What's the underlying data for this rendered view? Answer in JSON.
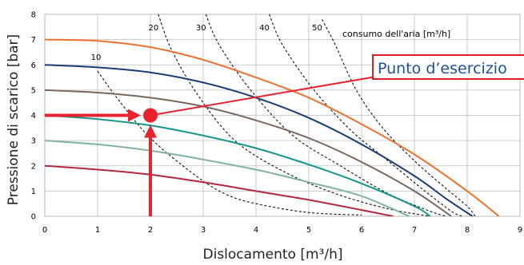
{
  "chart_data": {
    "type": "line",
    "title": "",
    "xlabel": "Dislocamento [m³/h]",
    "ylabel": "Pressione di scarico [bar]",
    "xlim": [
      0,
      9
    ],
    "ylim": [
      0,
      8
    ],
    "x_ticks": [
      "0",
      "1",
      "2",
      "3",
      "4",
      "5",
      "6",
      "7",
      "8",
      "9"
    ],
    "y_ticks": [
      "0",
      "1",
      "2",
      "3",
      "4",
      "5",
      "6",
      "7",
      "8"
    ],
    "grid": true,
    "pump_curves": [
      {
        "color": "#b5273a",
        "points": [
          [
            0,
            2.0
          ],
          [
            1,
            1.85
          ],
          [
            2,
            1.65
          ],
          [
            3,
            1.35
          ],
          [
            4,
            1.0
          ],
          [
            5,
            0.65
          ],
          [
            6,
            0.25
          ],
          [
            6.6,
            0
          ]
        ]
      },
      {
        "color": "#7fb3a3",
        "points": [
          [
            0,
            3.0
          ],
          [
            1,
            2.85
          ],
          [
            2,
            2.6
          ],
          [
            3,
            2.25
          ],
          [
            4,
            1.85
          ],
          [
            5,
            1.35
          ],
          [
            6,
            0.8
          ],
          [
            6.9,
            0
          ]
        ]
      },
      {
        "color": "#14968a",
        "points": [
          [
            0,
            4.0
          ],
          [
            1,
            3.85
          ],
          [
            2,
            3.6
          ],
          [
            3,
            3.2
          ],
          [
            4,
            2.7
          ],
          [
            5,
            2.05
          ],
          [
            6,
            1.3
          ],
          [
            7,
            0.4
          ],
          [
            7.3,
            0
          ]
        ]
      },
      {
        "color": "#7b675a",
        "points": [
          [
            0,
            5.0
          ],
          [
            1,
            4.9
          ],
          [
            2,
            4.7
          ],
          [
            3,
            4.35
          ],
          [
            4,
            3.8
          ],
          [
            5,
            3.1
          ],
          [
            6,
            2.15
          ],
          [
            7,
            1.0
          ],
          [
            7.7,
            0
          ]
        ]
      },
      {
        "color": "#1a3d7a",
        "points": [
          [
            0,
            6.0
          ],
          [
            1,
            5.9
          ],
          [
            2,
            5.7
          ],
          [
            3,
            5.3
          ],
          [
            4,
            4.7
          ],
          [
            5,
            3.9
          ],
          [
            6,
            2.85
          ],
          [
            7,
            1.6
          ],
          [
            7.6,
            0.7
          ],
          [
            8.1,
            0
          ]
        ]
      },
      {
        "color": "#f07030",
        "points": [
          [
            0,
            7.0
          ],
          [
            1,
            6.95
          ],
          [
            2,
            6.7
          ],
          [
            3,
            6.2
          ],
          [
            4,
            5.5
          ],
          [
            5,
            4.7
          ],
          [
            6,
            3.65
          ],
          [
            7,
            2.45
          ],
          [
            8,
            1.0
          ],
          [
            8.6,
            0
          ]
        ]
      }
    ],
    "air_consumption": {
      "label": "consumo dell'aria [m³/h]",
      "lines": [
        {
          "label": "10",
          "points": [
            [
              1.0,
              5.75
            ],
            [
              1.4,
              4.6
            ],
            [
              2.0,
              3.1
            ],
            [
              2.8,
              1.7
            ],
            [
              3.4,
              0.9
            ],
            [
              4.0,
              0.5
            ],
            [
              5.0,
              0.15
            ],
            [
              6.0,
              0.05
            ]
          ]
        },
        {
          "label": "20",
          "points": [
            [
              2.15,
              8.0
            ],
            [
              2.4,
              6.6
            ],
            [
              2.9,
              4.8
            ],
            [
              3.6,
              3.0
            ],
            [
              4.5,
              1.8
            ],
            [
              5.5,
              0.9
            ],
            [
              6.5,
              0.3
            ],
            [
              7.3,
              0
            ]
          ]
        },
        {
          "label": "30",
          "points": [
            [
              3.05,
              8.0
            ],
            [
              3.3,
              6.8
            ],
            [
              3.9,
              5.0
            ],
            [
              4.7,
              3.2
            ],
            [
              5.6,
              2.0
            ],
            [
              6.5,
              0.9
            ],
            [
              7.3,
              0.2
            ],
            [
              7.6,
              0
            ]
          ]
        },
        {
          "label": "40",
          "points": [
            [
              4.25,
              8.0
            ],
            [
              4.5,
              6.8
            ],
            [
              5.1,
              5.0
            ],
            [
              5.8,
              3.4
            ],
            [
              6.5,
              2.2
            ],
            [
              7.2,
              1.0
            ],
            [
              7.7,
              0.2
            ],
            [
              7.9,
              0
            ]
          ]
        },
        {
          "label": "50",
          "points": [
            [
              5.25,
              7.8
            ],
            [
              5.5,
              6.8
            ],
            [
              5.9,
              5.0
            ],
            [
              6.4,
              3.5
            ],
            [
              7.0,
              2.2
            ],
            [
              7.6,
              1.1
            ],
            [
              8.0,
              0.4
            ],
            [
              8.15,
              0
            ]
          ]
        }
      ]
    },
    "operating_point": {
      "x": 2.0,
      "y": 4.0,
      "label": "Punto d’esercizio"
    }
  }
}
